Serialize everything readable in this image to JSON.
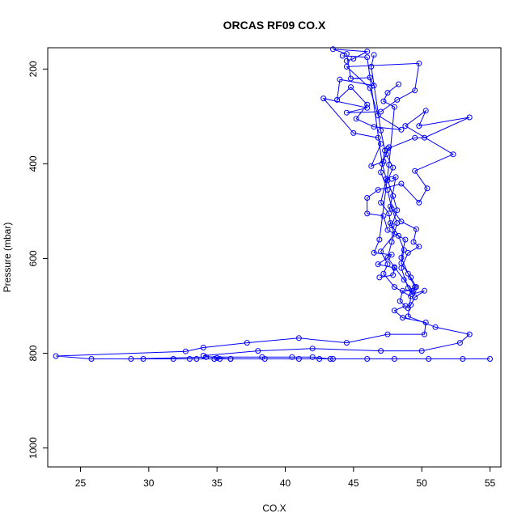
{
  "chart_data": {
    "type": "line",
    "title": "ORCAS RF09 CO.X",
    "xlabel": "CO.X",
    "ylabel": "Pressure (mbar)",
    "xlim": [
      22.6,
      55.8
    ],
    "ylim": [
      1040,
      155
    ],
    "y_inverted": true,
    "x_ticks": [
      "25",
      "30",
      "35",
      "40",
      "45",
      "50",
      "55"
    ],
    "y_ticks": [
      "200",
      "400",
      "600",
      "800",
      "1000"
    ],
    "grid": false,
    "legend": "none",
    "series": [
      {
        "color": "#0000ff",
        "marker": "open-circle",
        "points": [
          [
            44.5,
            183
          ],
          [
            45.0,
            178
          ],
          [
            46.0,
            163
          ],
          [
            43.5,
            158
          ],
          [
            44.5,
            168
          ],
          [
            44.8,
            220
          ],
          [
            46.2,
            218
          ],
          [
            46.5,
            235
          ],
          [
            44.0,
            222
          ],
          [
            43.8,
            265
          ],
          [
            44.8,
            238
          ],
          [
            46.0,
            275
          ],
          [
            45.2,
            305
          ],
          [
            46.5,
            322
          ],
          [
            48.5,
            328
          ],
          [
            46.8,
            298
          ],
          [
            46.2,
            240
          ],
          [
            44.5,
            195
          ],
          [
            49.8,
            188
          ],
          [
            49.5,
            245
          ],
          [
            48.2,
            265
          ],
          [
            47.0,
            290
          ],
          [
            44.5,
            292
          ],
          [
            46.0,
            282
          ],
          [
            42.8,
            262
          ],
          [
            45.0,
            335
          ],
          [
            46.8,
            345
          ],
          [
            47.0,
            358
          ],
          [
            46.3,
            405
          ],
          [
            47.2,
            395
          ],
          [
            47.5,
            368
          ],
          [
            49.5,
            345
          ],
          [
            50.2,
            345
          ],
          [
            53.5,
            302
          ],
          [
            49.8,
            320
          ],
          [
            50.3,
            288
          ],
          [
            48.8,
            320
          ],
          [
            52.3,
            380
          ],
          [
            49.5,
            415
          ],
          [
            50.4,
            452
          ],
          [
            49.8,
            482
          ],
          [
            48.5,
            442
          ],
          [
            46.8,
            455
          ],
          [
            46.0,
            472
          ],
          [
            46.0,
            505
          ],
          [
            47.2,
            510
          ],
          [
            47.5,
            540
          ],
          [
            48.8,
            560
          ],
          [
            48.5,
            598
          ],
          [
            49.0,
            632
          ],
          [
            49.5,
            660
          ],
          [
            49.4,
            668
          ],
          [
            48.6,
            668
          ],
          [
            48.4,
            690
          ],
          [
            48.8,
            700
          ],
          [
            48.0,
            710
          ],
          [
            48.6,
            725
          ],
          [
            50.3,
            735
          ],
          [
            50.2,
            760
          ],
          [
            47.5,
            760
          ],
          [
            44.5,
            778
          ],
          [
            41.0,
            768
          ],
          [
            37.2,
            778
          ],
          [
            34.0,
            788
          ],
          [
            32.7,
            796
          ],
          [
            23.2,
            806
          ],
          [
            25.8,
            812
          ],
          [
            55.0,
            812
          ],
          [
            53.0,
            812
          ],
          [
            50.5,
            812
          ],
          [
            48.0,
            812
          ],
          [
            46.0,
            812
          ],
          [
            43.5,
            812
          ],
          [
            42.5,
            812
          ],
          [
            41.0,
            812
          ],
          [
            38.5,
            812
          ],
          [
            36.0,
            812
          ],
          [
            35.2,
            812
          ],
          [
            34.8,
            812
          ],
          [
            33.5,
            812
          ],
          [
            33.0,
            812
          ],
          [
            31.8,
            812
          ],
          [
            29.6,
            812
          ],
          [
            28.7,
            812
          ],
          [
            34.2,
            808
          ],
          [
            38.3,
            808
          ],
          [
            40.5,
            808
          ],
          [
            42.0,
            808
          ],
          [
            43.3,
            812
          ]
        ]
      },
      {
        "color": "#0000ff",
        "marker": "open-circle",
        "points": [
          [
            44.2,
            172
          ],
          [
            46.0,
            175
          ],
          [
            47.1,
            400
          ],
          [
            47.4,
            432
          ],
          [
            47.0,
            482
          ],
          [
            47.6,
            505
          ],
          [
            47.7,
            525
          ],
          [
            48.0,
            548
          ],
          [
            47.0,
            585
          ],
          [
            47.5,
            612
          ],
          [
            47.2,
            632
          ],
          [
            48.0,
            660
          ],
          [
            49.2,
            680
          ],
          [
            49.0,
            722
          ],
          [
            51.0,
            745
          ],
          [
            53.5,
            760
          ],
          [
            52.8,
            778
          ],
          [
            50.0,
            795
          ],
          [
            47.0,
            795
          ],
          [
            42.0,
            790
          ],
          [
            38.0,
            795
          ],
          [
            34.0,
            805
          ],
          [
            35.0,
            810
          ],
          [
            36.0,
            812
          ]
        ]
      },
      {
        "color": "#0000ff",
        "marker": "open-circle",
        "points": [
          [
            46.5,
            170
          ],
          [
            46.3,
            195
          ],
          [
            47.0,
            330
          ],
          [
            47.3,
            372
          ],
          [
            47.0,
            418
          ],
          [
            47.5,
            455
          ],
          [
            47.8,
            495
          ],
          [
            48.2,
            525
          ],
          [
            47.8,
            565
          ],
          [
            47.5,
            598
          ],
          [
            48.0,
            618
          ],
          [
            48.7,
            645
          ],
          [
            49.3,
            668
          ],
          [
            49.6,
            660
          ],
          [
            49.2,
            640
          ],
          [
            48.5,
            610
          ],
          [
            48.7,
            582
          ],
          [
            48.3,
            552
          ],
          [
            47.8,
            530
          ],
          [
            48.2,
            498
          ],
          [
            47.9,
            468
          ],
          [
            47.5,
            435
          ],
          [
            47.9,
            408
          ],
          [
            47.4,
            380
          ],
          [
            47.6,
            365
          ]
        ]
      },
      {
        "color": "#0000ff",
        "marker": "open-circle",
        "points": [
          [
            47.8,
            432
          ],
          [
            48.1,
            428
          ],
          [
            47.7,
            490
          ],
          [
            48.5,
            522
          ],
          [
            49.6,
            538
          ],
          [
            49.4,
            565
          ],
          [
            49.8,
            575
          ],
          [
            49.0,
            588
          ],
          [
            48.5,
            620
          ],
          [
            49.0,
            662
          ],
          [
            49.3,
            675
          ],
          [
            50.2,
            668
          ],
          [
            49.5,
            682
          ],
          [
            49.2,
            698
          ],
          [
            49.0,
            705
          ]
        ]
      },
      {
        "color": "#0000ff",
        "marker": "open-circle",
        "points": [
          [
            48.3,
            232
          ],
          [
            47.5,
            250
          ],
          [
            47.2,
            268
          ],
          [
            48.0,
            280
          ],
          [
            47.6,
            402
          ],
          [
            46.9,
            560
          ],
          [
            46.5,
            588
          ],
          [
            47.8,
            592
          ],
          [
            46.8,
            612
          ],
          [
            48.0,
            620
          ],
          [
            47.9,
            635
          ],
          [
            46.9,
            640
          ]
        ]
      }
    ]
  }
}
